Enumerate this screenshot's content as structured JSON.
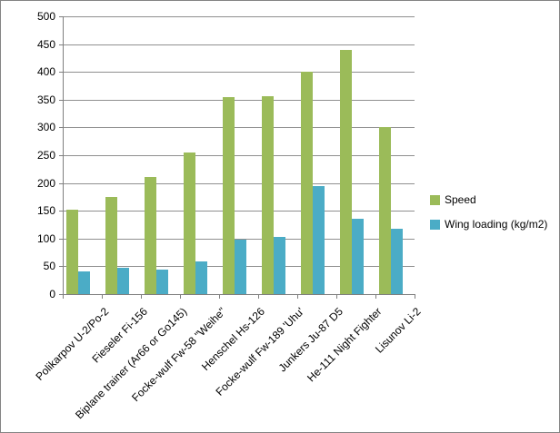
{
  "chart_data": {
    "type": "bar",
    "title": "",
    "xlabel": "",
    "ylabel": "",
    "categories": [
      "Polikarpov U-2/Po-2",
      "Fieseler Fi-156",
      "Biplane trainer (Ar66 or Go145)",
      "Focke-wulf Fw-58 \"Weihe\"",
      "Henschel Hs-126",
      "Focke-wulf Fw-189 'Uhu'",
      "Junkers Ju-87 D5",
      "He-111 Night Fighter",
      "Lisunov Li-2"
    ],
    "series": [
      {
        "name": "Speed",
        "color": "#9BBB59",
        "values": [
          152,
          175,
          210,
          255,
          355,
          357,
          400,
          440,
          300
        ]
      },
      {
        "name": "Wing loading (kg/m2)",
        "color": "#4BACC6",
        "values": [
          41,
          48,
          44,
          59,
          98,
          103,
          195,
          135,
          117
        ]
      }
    ],
    "ylim": [
      0,
      500
    ],
    "yticks": [
      0,
      50,
      100,
      150,
      200,
      250,
      300,
      350,
      400,
      450,
      500
    ],
    "grid": true,
    "legend_position": "right",
    "colors": {
      "gridline": "#8f8f8f",
      "axis": "#7f7f7f",
      "text": "#000000",
      "background": "#ffffff"
    }
  }
}
